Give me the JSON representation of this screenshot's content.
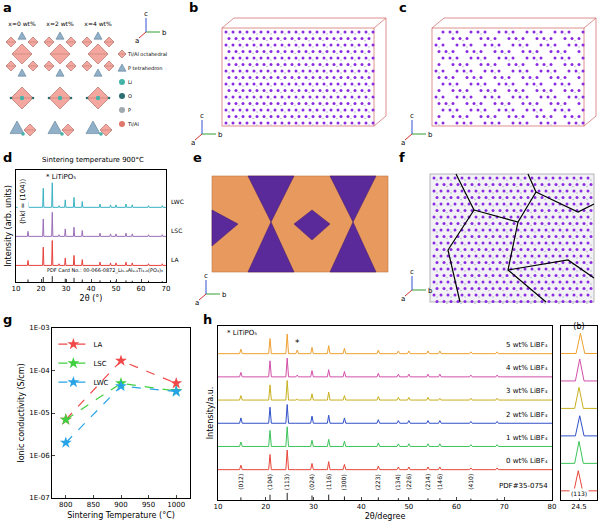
{
  "structures": [
    {
      "panel": "a",
      "columns": [
        "x=0 wt%",
        "x=2 wt%",
        "x=4 wt%"
      ],
      "axes": [
        "a",
        "b",
        "c"
      ],
      "items": [
        {
          "label": "Ti/Al octahedral",
          "marker": "octahedron",
          "color": "#f3a79e"
        },
        {
          "label": "P tetrahedron",
          "marker": "tetrahedron",
          "color": "#8fb0c8"
        },
        {
          "label": "Li",
          "marker": "circle",
          "color": "#45b3a8"
        },
        {
          "label": "O",
          "marker": "circle",
          "color": "#2e6e72"
        },
        {
          "label": "P",
          "marker": "circle",
          "color": "#9ea9b0"
        },
        {
          "label": "Ti/Al",
          "marker": "circle",
          "color": "#e0766c"
        }
      ]
    },
    {
      "panel": "b",
      "axes": [
        "a",
        "b",
        "c"
      ]
    },
    {
      "panel": "c",
      "axes": [
        "a",
        "b",
        "c"
      ]
    },
    {
      "panel": "e",
      "axes": [
        "a",
        "b",
        "c"
      ]
    },
    {
      "panel": "f",
      "axes": [
        "a",
        "b",
        "c"
      ]
    }
  ],
  "chart_data": [
    {
      "panel": "d",
      "type": "xrd",
      "title": "Sintering temperature 900°C",
      "x_label": "2θ (°)",
      "y_label": "Intensity (arb. units)",
      "xlim": [
        10,
        70
      ],
      "xticks": [
        10,
        20,
        30,
        40,
        50,
        60,
        70
      ],
      "ylim": [
        0,
        135
      ],
      "tick_labels": "x",
      "x": [
        14.8,
        20.9,
        24.5,
        27.2,
        29.7,
        33.2,
        36.5,
        43.6,
        47.8,
        50.0,
        54.0,
        56.5,
        63.0,
        68.5
      ],
      "annotations": [
        "* LiTiPO₅",
        "(hkl = (104))"
      ],
      "series": [
        {
          "name": "PDF Card No.: 00-066-0872_Li₁.₄Al₀.₄Ti₁.₆(PO₄)₃",
          "type": "stick",
          "color": "#222222",
          "offset": 0,
          "values": [
            3,
            6,
            7,
            0,
            4,
            5,
            3,
            2,
            2,
            1.5,
            2,
            1.5,
            1.5,
            1
          ]
        },
        {
          "name": "LA",
          "color": "#e8413c",
          "offset": 20,
          "values": [
            6,
            22,
            30,
            2,
            9,
            12,
            7,
            4,
            3,
            3,
            4,
            3,
            2,
            2
          ]
        },
        {
          "name": "LSC",
          "color": "#9b6fb8",
          "offset": 55,
          "values": [
            6,
            21,
            29,
            2,
            9,
            11,
            7,
            4,
            3,
            3,
            4,
            3,
            2,
            2
          ]
        },
        {
          "name": "LWC",
          "color": "#3bb3c3",
          "offset": 90,
          "values": [
            7,
            23,
            30,
            2,
            9,
            12,
            7,
            4,
            3,
            3,
            4,
            3,
            2,
            2
          ]
        }
      ]
    },
    {
      "panel": "g",
      "type": "line",
      "x_label": "Sintering Temperature (°C)",
      "y_label": "Ionic conductivity (S/cm)",
      "x": [
        800,
        900,
        1000
      ],
      "xlim": [
        775,
        1025
      ],
      "xticks": [
        800,
        850,
        900,
        950,
        1000
      ],
      "log": "y",
      "ylim": [
        1e-07,
        0.001
      ],
      "yticks": [
        {
          "value": 1e-07,
          "label": "1E-07"
        },
        {
          "value": 1e-06,
          "label": "1E-06"
        },
        {
          "value": 1e-05,
          "label": "1E-05"
        },
        {
          "value": 0.0001,
          "label": "1E-04"
        },
        {
          "value": 0.001,
          "label": "1E-03"
        }
      ],
      "legend": "top-left",
      "line_style": "dash",
      "marker": "star",
      "series": [
        {
          "name": "LA",
          "color": "#f04848",
          "values": [
            7e-06,
            0.00017,
            5e-05
          ]
        },
        {
          "name": "LSC",
          "color": "#3fcf3f",
          "values": [
            7e-06,
            5e-05,
            3.3e-05
          ]
        },
        {
          "name": "LWC",
          "color": "#27a4e8",
          "values": [
            2e-06,
            4.3e-05,
            3.2e-05
          ]
        }
      ]
    },
    {
      "panel": "h",
      "type": "xrd",
      "x_label": "2θ/degree",
      "y_label": "Intensity/a.u.",
      "xlim": [
        10,
        80
      ],
      "xticks": [
        10,
        20,
        30,
        40,
        50,
        60,
        70,
        80
      ],
      "ylim": [
        0,
        195
      ],
      "tick_labels": "x",
      "x": [
        14.8,
        20.9,
        24.5,
        26.6,
        29.7,
        33.2,
        36.5,
        43.6,
        47.8,
        50.0,
        54.0,
        56.5,
        63.0,
        68.5
      ],
      "peak_labels": [
        "(012)",
        "(104)",
        "(113)",
        null,
        "(024)",
        "(116)",
        "(300)",
        "(223)",
        "(134)",
        "(226)",
        "(214)",
        "(146)",
        "(410)",
        null
      ],
      "annotations": [
        "* LiTiPO₅"
      ],
      "series": [
        {
          "name": "PDF#35-0754",
          "type": "stick",
          "color": "#222222",
          "offset": 0,
          "values": [
            3,
            6,
            8,
            0,
            5,
            6,
            4,
            3,
            2,
            2,
            2,
            2,
            1.5,
            1.5
          ]
        },
        {
          "name": "0 wt% LiBF₄",
          "color": "#e8463a",
          "offset": 34,
          "values": [
            5,
            17,
            22,
            0,
            7,
            9,
            6,
            4,
            3,
            3,
            3,
            3,
            2,
            2
          ]
        },
        {
          "name": "1 wt% LiBF₄",
          "color": "#3cc35a",
          "offset": 60,
          "values": [
            5,
            18,
            22,
            0,
            7,
            8,
            6,
            4,
            3,
            3,
            3,
            3,
            2,
            2
          ]
        },
        {
          "name": "2 wt% LiBF₄",
          "color": "#3050c8",
          "offset": 86,
          "values": [
            6,
            18,
            21,
            0,
            8,
            9,
            6,
            4,
            3,
            3,
            3,
            3,
            2,
            2
          ]
        },
        {
          "name": "3 wt% LiBF₄",
          "color": "#c8b020",
          "offset": 112,
          "values": [
            5,
            17,
            22,
            1,
            7,
            9,
            5,
            4,
            3,
            3,
            3,
            2,
            2,
            2
          ]
        },
        {
          "name": "4 wt% LiBF₄",
          "color": "#d24fa8",
          "offset": 138,
          "values": [
            5,
            18,
            21,
            2,
            7,
            8,
            6,
            4,
            3,
            3,
            3,
            3,
            2,
            2
          ]
        },
        {
          "name": "5 wt% LiBF₄",
          "color": "#f0a030",
          "offset": 164,
          "values": [
            5,
            17,
            22,
            4,
            7,
            9,
            6,
            4,
            3,
            3,
            3,
            3,
            2,
            2
          ],
          "peak_marks": [
            null,
            null,
            null,
            "*",
            null,
            null,
            null,
            null,
            null,
            null,
            null,
            null,
            null,
            null
          ]
        }
      ]
    },
    {
      "panel": "h",
      "type": "xrd_zoom",
      "title": "(b)",
      "xlim": [
        24.0,
        25.0
      ],
      "xticks": [
        24.5
      ],
      "ylim": [
        0,
        190
      ],
      "tick_labels": "x",
      "annotations": [
        "(113)"
      ],
      "series": [
        {
          "color": "#e8463a",
          "offset": 10,
          "x": [
            24.48
          ],
          "values": [
            22
          ]
        },
        {
          "color": "#3cc35a",
          "offset": 40,
          "x": [
            24.5
          ],
          "values": [
            24
          ]
        },
        {
          "color": "#3050c8",
          "offset": 70,
          "x": [
            24.52
          ],
          "values": [
            22
          ]
        },
        {
          "color": "#c8b020",
          "offset": 100,
          "x": [
            24.5
          ],
          "values": [
            23
          ]
        },
        {
          "color": "#d24fa8",
          "offset": 130,
          "x": [
            24.52
          ],
          "values": [
            24
          ]
        },
        {
          "color": "#f0a030",
          "offset": 160,
          "x": [
            24.54
          ],
          "values": [
            22
          ]
        }
      ]
    }
  ]
}
